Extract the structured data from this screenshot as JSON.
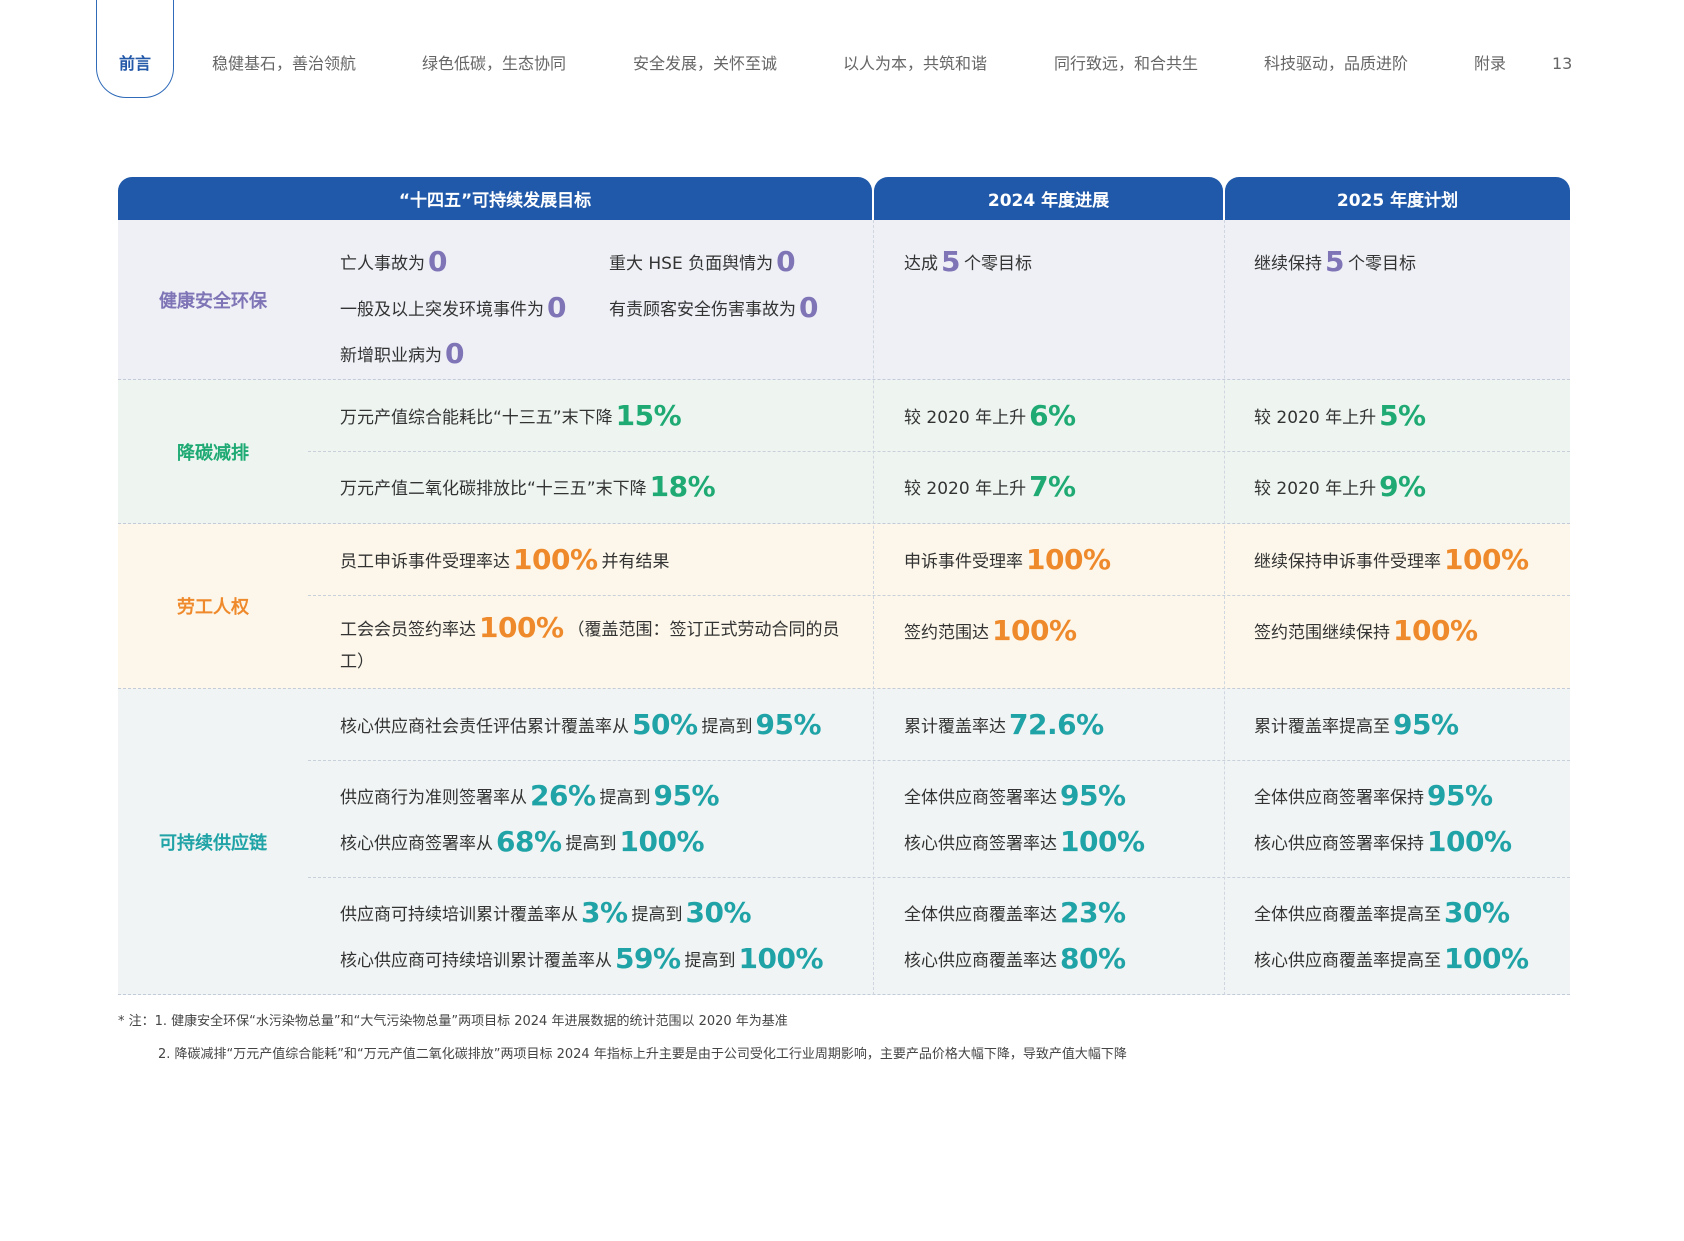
{
  "nav": {
    "items": [
      "前言",
      "稳健基石，善治领航",
      "绿色低碳，生态协同",
      "安全发展，关怀至诚",
      "以人为本，共筑和谐",
      "同行致远，和合共生",
      "科技驱动，品质进阶",
      "附录"
    ],
    "page_number": "13"
  },
  "table": {
    "headers": [
      "“十四五”可持续发展目标",
      "2024 年度进展",
      "2025 年度计划"
    ],
    "hse": {
      "label": "健康安全环保",
      "g1_pre": "亡人事故为",
      "g1_num": "0",
      "g2_pre": "重大 HSE 负面舆情为",
      "g2_num": "0",
      "g3_pre": "一般及以上突发环境事件为",
      "g3_num": "0",
      "g4_pre": "有责顾客安全伤害事故为",
      "g4_num": "0",
      "g5_pre": "新增职业病为",
      "g5_num": "0",
      "p_pre": "达成",
      "p_num": "5",
      "p_post": "个零目标",
      "n_pre": "继续保持",
      "n_num": "5",
      "n_post": "个零目标"
    },
    "carbon": {
      "label": "降碳减排",
      "r1": {
        "goal_pre": "万元产值综合能耗比“十三五”末下降",
        "goal_num": "15%",
        "p_pre": "较 2020 年上升",
        "p_num": "6%",
        "n_pre": "较 2020 年上升",
        "n_num": "5%"
      },
      "r2": {
        "goal_pre": "万元产值二氧化碳排放比“十三五”末下降",
        "goal_num": "18%",
        "p_pre": "较 2020 年上升",
        "p_num": "7%",
        "n_pre": "较 2020 年上升",
        "n_num": "9%"
      }
    },
    "labor": {
      "label": "劳工人权",
      "r1": {
        "goal_pre": "员工申诉事件受理率达",
        "goal_num": "100%",
        "goal_post": "并有结果",
        "p_pre": "申诉事件受理率",
        "p_num": "100%",
        "n_pre": "继续保持申诉事件受理率",
        "n_num": "100%"
      },
      "r2": {
        "goal_pre": "工会会员签约率达",
        "goal_num": "100%",
        "goal_post": "（覆盖范围：签订正式劳动合同的员工）",
        "p_pre": "签约范围达",
        "p_num": "100%",
        "n_pre": "签约范围继续保持",
        "n_num": "100%"
      }
    },
    "supply": {
      "label": "可持续供应链",
      "r1": {
        "goal_pre": "核心供应商社会责任评估累计覆盖率从",
        "goal_num1": "50%",
        "goal_mid": "提高到",
        "goal_num2": "95%",
        "p_pre": "累计覆盖率达",
        "p_num": "72.6%",
        "n_pre": "累计覆盖率提高至",
        "n_num": "95%"
      },
      "r2a": {
        "goal_pre": "供应商行为准则签署率从",
        "goal_num1": "26%",
        "goal_mid": "提高到",
        "goal_num2": "95%",
        "p_pre": "全体供应商签署率达",
        "p_num": "95%",
        "n_pre": "全体供应商签署率保持",
        "n_num": "95%"
      },
      "r2b": {
        "goal_pre": "核心供应商签署率从",
        "goal_num1": "68%",
        "goal_mid": "提高到",
        "goal_num2": "100%",
        "p_pre": "核心供应商签署率达",
        "p_num": "100%",
        "n_pre": "核心供应商签署率保持",
        "n_num": "100%"
      },
      "r3a": {
        "goal_pre": "供应商可持续培训累计覆盖率从",
        "goal_num1": "3%",
        "goal_mid": "提高到",
        "goal_num2": "30%",
        "p_pre": "全体供应商覆盖率达",
        "p_num": "23%",
        "n_pre": "全体供应商覆盖率提高至",
        "n_num": "30%"
      },
      "r3b": {
        "goal_pre": "核心供应商可持续培训累计覆盖率从",
        "goal_num1": "59%",
        "goal_mid": "提高到",
        "goal_num2": "100%",
        "p_pre": "核心供应商覆盖率达",
        "p_num": "80%",
        "n_pre": "核心供应商覆盖率提高至",
        "n_num": "100%"
      }
    }
  },
  "notes": {
    "n1": "* 注：1. 健康安全环保“水污染物总量”和“大气污染物总量”两项目标 2024 年进展数据的统计范围以 2020 年为基准",
    "n2": "2. 降碳减排“万元产值综合能耗”和“万元产值二氧化碳排放”两项目标 2024 年指标上升主要是由于公司受化工行业周期影响，主要产品价格大幅下降，导致产值大幅下降"
  }
}
